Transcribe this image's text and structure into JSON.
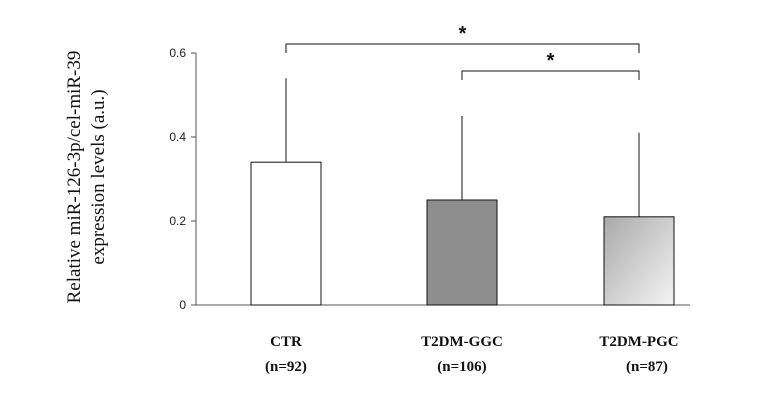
{
  "chart_data": {
    "type": "bar",
    "title": "",
    "ylabel_lines": [
      "Relative miR-126-3p/cel-miR-39",
      "expression levels (a.u.)"
    ],
    "xlabel": "",
    "ylim": [
      0,
      0.6
    ],
    "yticks": [
      0,
      0.2,
      0.4,
      0.6
    ],
    "ytick_labels": [
      "0",
      "0.2",
      "0.4",
      "0.6"
    ],
    "grid": false,
    "legend": "none",
    "categories": [
      "CTR",
      "T2DM-GGC",
      "T2DM-PGC"
    ],
    "category_notes": [
      "(n=92)",
      "(n=106)",
      "(n=87)"
    ],
    "values": [
      0.34,
      0.25,
      0.21
    ],
    "error_upper": [
      0.2,
      0.2,
      0.2
    ],
    "bar_fills": [
      "plain-white",
      "solid-gray",
      "gradient-gray"
    ],
    "colors": {
      "bar_white": "#ffffff",
      "bar_gray": "#8e8e8e",
      "bar_gradient_start": "#a9a9a9",
      "bar_gradient_end": "#f4f4f4",
      "ink": "#111111"
    },
    "significance": [
      {
        "from": "CTR",
        "to": "T2DM-PGC",
        "label": "*"
      },
      {
        "from": "T2DM-GGC",
        "to": "T2DM-PGC",
        "label": "*"
      }
    ]
  }
}
